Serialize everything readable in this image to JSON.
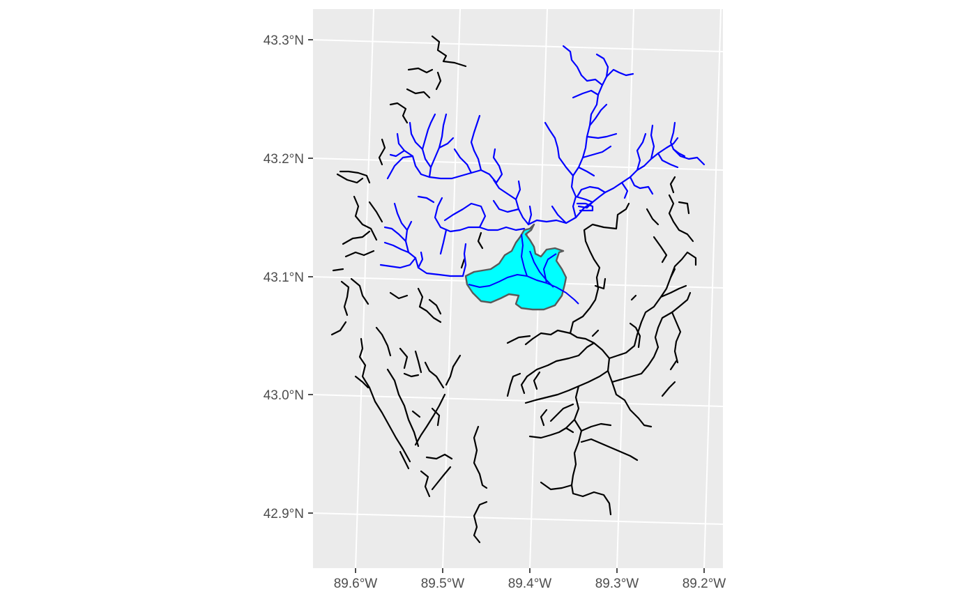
{
  "map": {
    "lat_ticks": [
      "43.3°N",
      "43.2°N",
      "43.1°N",
      "43.0°N",
      "42.9°N"
    ],
    "lon_ticks": [
      "89.6°W",
      "89.5°W",
      "89.4°W",
      "89.3°W",
      "89.2°W"
    ],
    "colors": {
      "panel_background": "#ebebeb",
      "grid": "#ffffff",
      "upstream_flowlines": "#0000ff",
      "other_flowlines": "#000000",
      "lake_fill": "#00ffff",
      "lake_outline": "#595959",
      "axis_text": "#4d4d4d"
    },
    "layers": [
      "other-flowlines",
      "upstream-flowlines",
      "lake"
    ]
  }
}
